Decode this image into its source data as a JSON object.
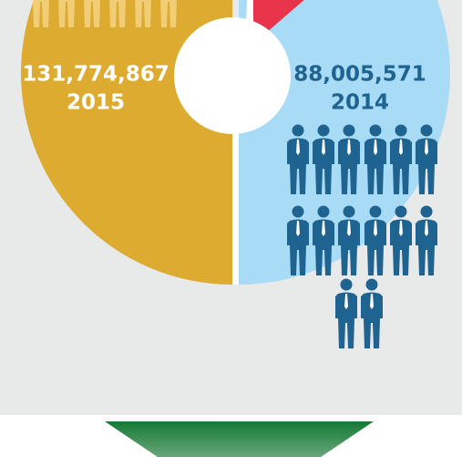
{
  "left": {
    "value": "131,774,867",
    "year": "2015"
  },
  "right": {
    "value": "88,005,571",
    "year": "2014"
  }
}
